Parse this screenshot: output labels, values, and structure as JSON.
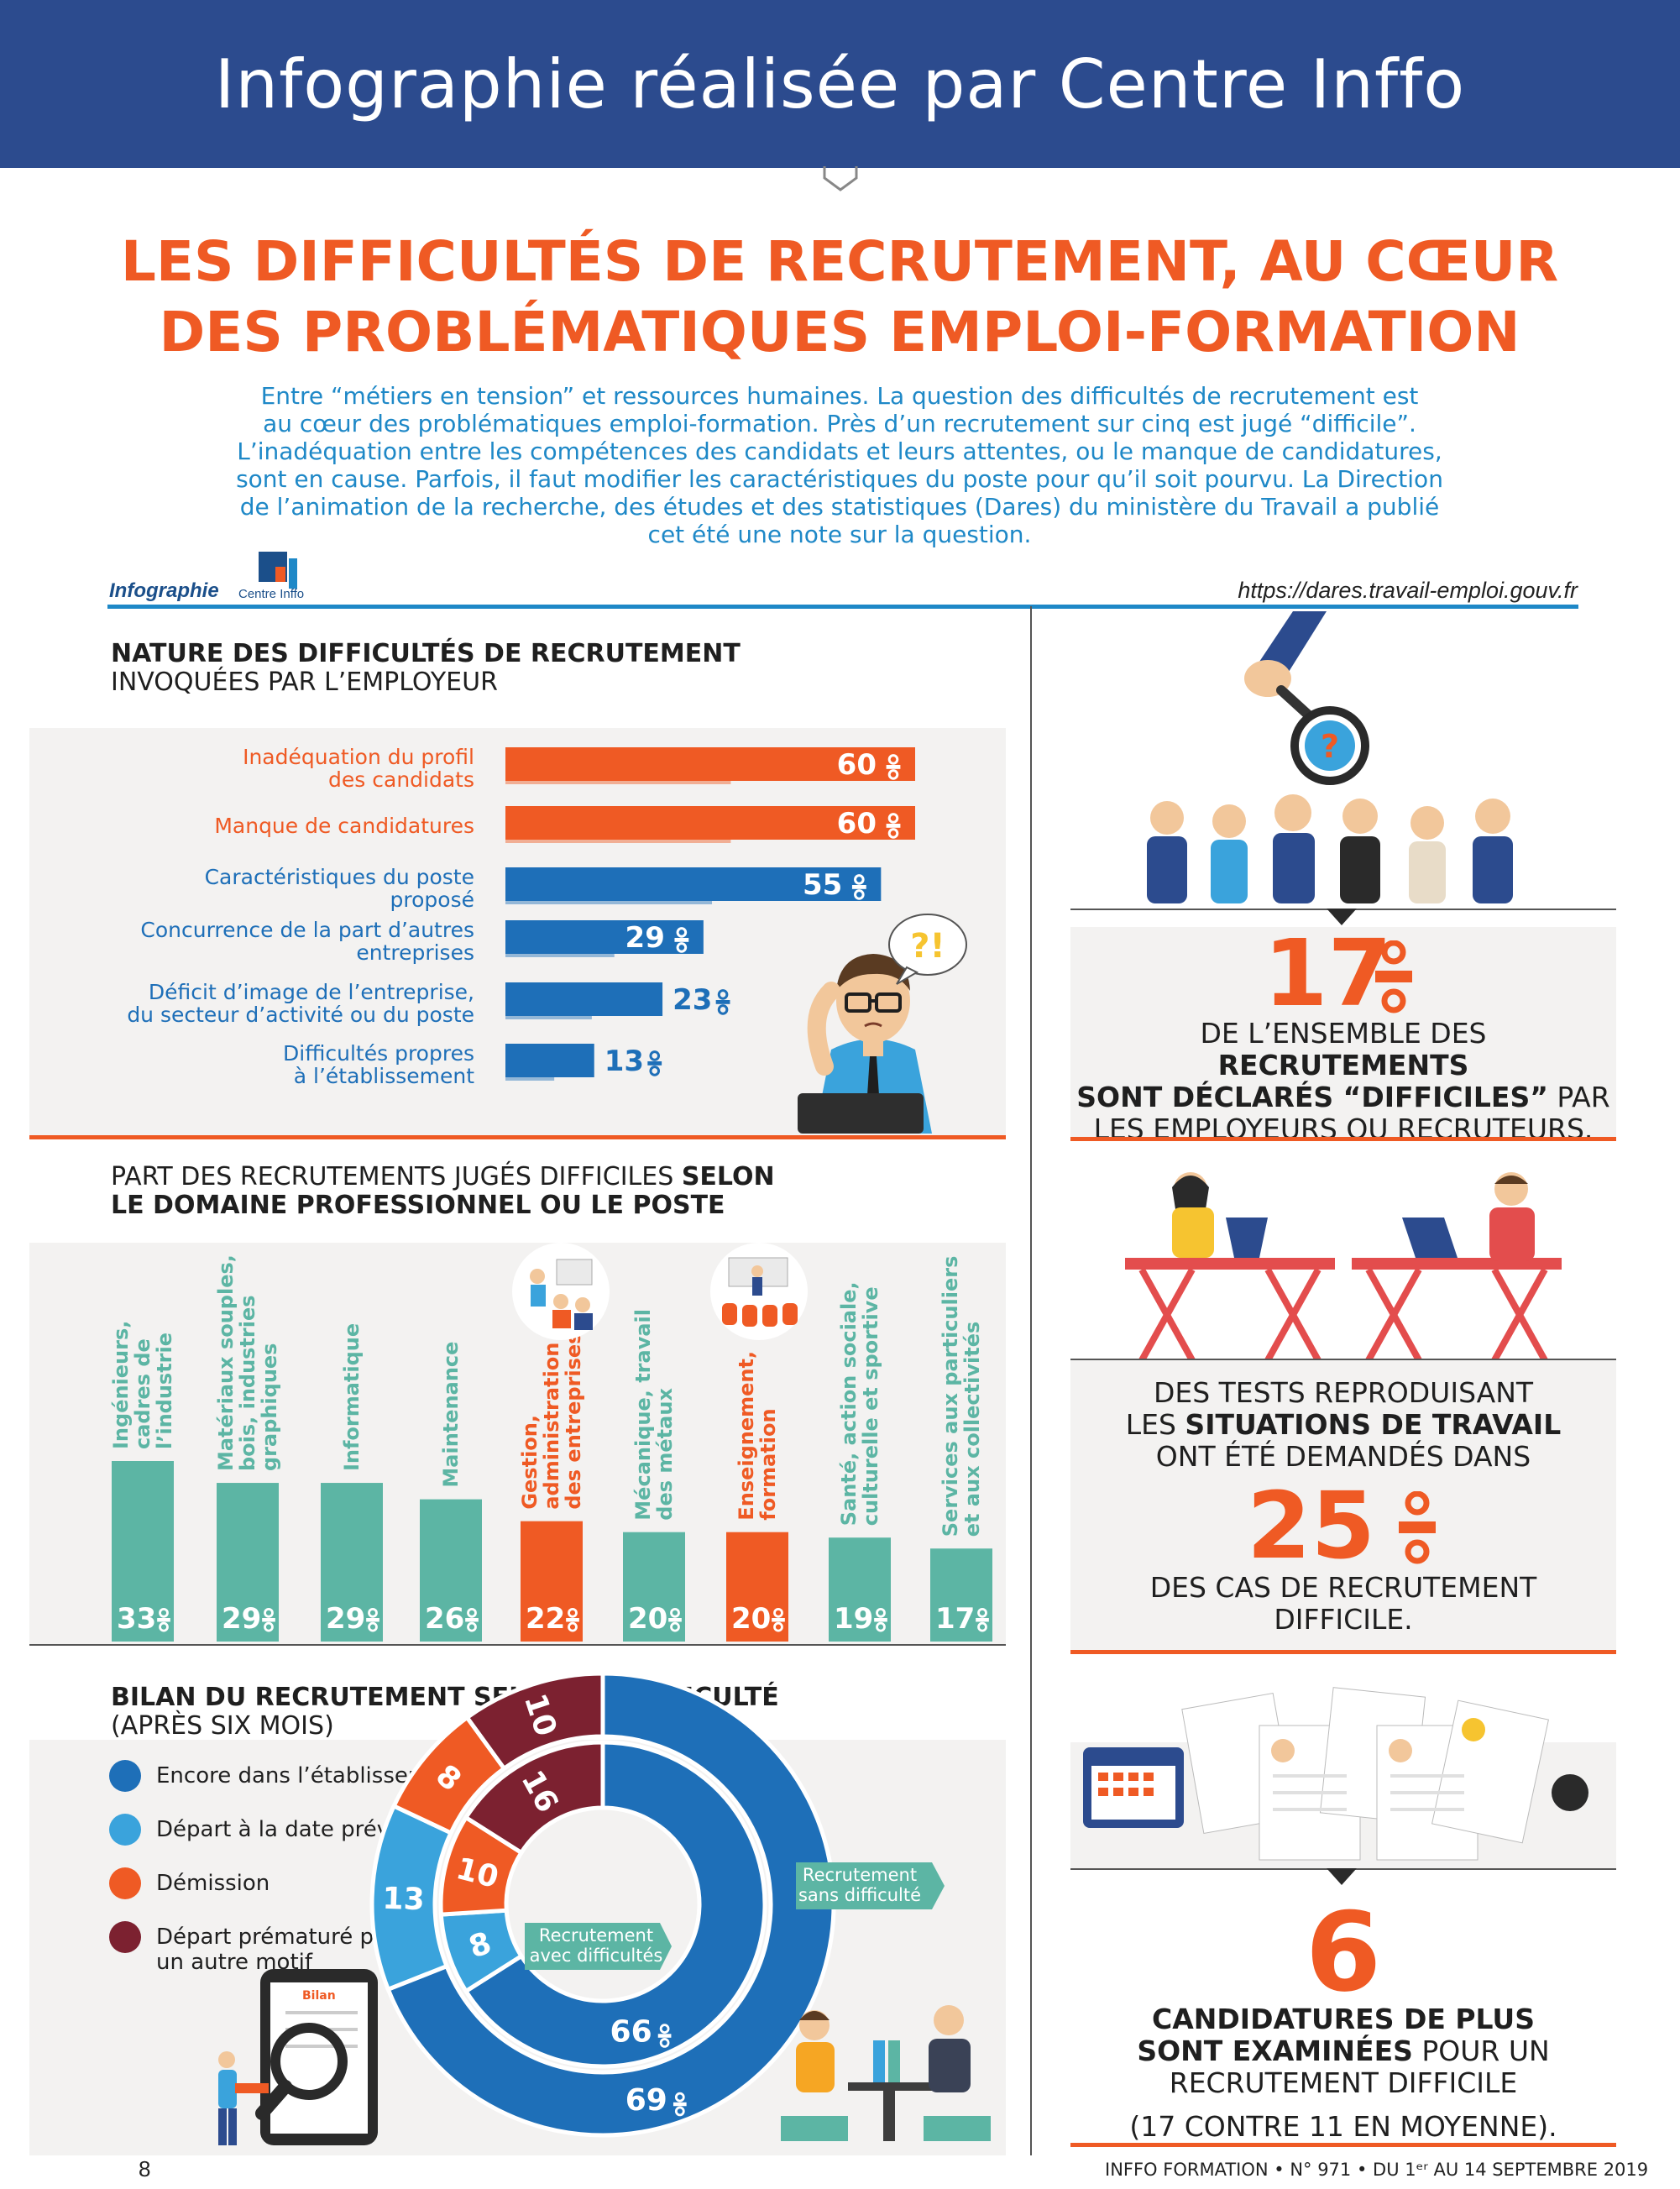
{
  "banner": {
    "text": "Infographie réalisée par Centre Inffo"
  },
  "title": {
    "line1": "LES DIFFICULTÉS DE RECRUTEMENT, AU CŒUR",
    "line2": "DES PROBLÉMATIQUES EMPLOI-FORMATION"
  },
  "intro": {
    "lines": [
      "Entre “métiers en tension” et ressources humaines. La question des difficultés de recrutement est",
      "au cœur des problématiques emploi-formation. Près d’un recrutement sur cinq est jugé “difficile”.",
      "L’inadéquation entre les compétences des candidats et leurs attentes, ou le manque de candidatures,",
      "sont en cause. Parfois, il faut modifier les caractéristiques du poste pour qu’il soit pourvu. La Direction",
      "de l’animation de la recherche, des études et des statistiques (Dares) du ministère du Travail a publié",
      "cet été une note sur la question."
    ]
  },
  "credit": {
    "label": "Infographie",
    "logo_text": "Centre Inffo",
    "url": "https://dares.travail-emploi.gouv.fr"
  },
  "colors": {
    "orange": "#ef5a24",
    "blue": "#1e6fb8",
    "teal": "#5cb5a4",
    "navy": "#2c4b8e",
    "light_blue": "#3aa3dc",
    "dark_red": "#7c2130"
  },
  "section1": {
    "heading_bold": "NATURE DES DIFFICULTÉS DE RECRUTEMENT",
    "heading_rest": "INVOQUÉES PAR L’EMPLOYEUR"
  },
  "section2": {
    "heading_line1_normal": "PART DES RECRUTEMENTS JUGÉS DIFFICILES ",
    "heading_line1_bold": "SELON",
    "heading_line2_bold": "LE DOMAINE PROFESSIONNEL OU LE POSTE"
  },
  "section3": {
    "heading_bold": "BILAN DU RECRUTEMENT SELON LA DIFFICULTÉ",
    "heading_rest": "(APRÈS SIX MOIS)"
  },
  "chart_data": [
    {
      "type": "bar",
      "orientation": "horizontal",
      "categories": [
        [
          "Inadéquation du profil",
          "des candidats"
        ],
        [
          "Manque de candidatures"
        ],
        [
          "Caractéristiques du poste",
          "proposé"
        ],
        [
          "Concurrence de la part d’autres",
          "entreprises"
        ],
        [
          "Déficit d’image de l’entreprise,",
          "du secteur d’activité ou du poste"
        ],
        [
          "Difficultés propres",
          "à l’établissement"
        ]
      ],
      "values": [
        60,
        60,
        55,
        29,
        23,
        13
      ],
      "unit": "%",
      "bar_colors": [
        "#ef5a24",
        "#ef5a24",
        "#1e6fb8",
        "#1e6fb8",
        "#1e6fb8",
        "#1e6fb8"
      ],
      "xlim": [
        0,
        60
      ]
    },
    {
      "type": "bar",
      "orientation": "vertical",
      "categories": [
        [
          "Ingénieurs,",
          "cadres de",
          "l’industrie"
        ],
        [
          "Matériaux souples,",
          "bois, industries",
          "graphiques"
        ],
        [
          "Informatique"
        ],
        [
          "Maintenance"
        ],
        [
          "Gestion,",
          "administration",
          "des entreprises"
        ],
        [
          "Mécanique, travail",
          "des métaux"
        ],
        [
          "Enseignement,",
          "formation"
        ],
        [
          "Santé, action sociale,",
          "culturelle et sportive"
        ],
        [
          "Services aux particuliers",
          "et aux collectivités"
        ]
      ],
      "values": [
        33,
        29,
        29,
        26,
        22,
        20,
        20,
        19,
        17
      ],
      "unit": "%",
      "bar_colors": [
        "#5cb5a4",
        "#5cb5a4",
        "#5cb5a4",
        "#5cb5a4",
        "#ef5a24",
        "#5cb5a4",
        "#ef5a24",
        "#5cb5a4",
        "#5cb5a4"
      ],
      "ylim": [
        0,
        33
      ]
    },
    {
      "type": "pie",
      "legend": [
        {
          "label": "Encore dans l’établissement",
          "color": "#1e6fb8"
        },
        {
          "label": "Départ à la date prévue",
          "color": "#3aa3dc"
        },
        {
          "label": "Démission",
          "color": "#ef5a24"
        },
        {
          "label": "Départ prématuré pour un autre motif",
          "color": "#7c2130"
        }
      ],
      "rings": [
        {
          "name": "Recrutement sans difficulté",
          "position": "outer",
          "values": [
            69,
            13,
            8,
            10
          ]
        },
        {
          "name": "Recrutement avec difficultés",
          "position": "inner",
          "values": [
            66,
            8,
            10,
            16
          ]
        }
      ],
      "unit": "%"
    }
  ],
  "stats": [
    {
      "value": "17",
      "unit": "%",
      "text_parts": [
        [
          "DE L’ENSEMBLE DES ",
          "RECRUTEMENTS"
        ],
        [
          "",
          "SONT DÉCLARÉS “DIFFICILES”",
          " PAR"
        ],
        [
          "LES EMPLOYEURS OU RECRUTEURS."
        ]
      ]
    },
    {
      "value": "25",
      "unit": "%",
      "pre": [
        "DES TESTS REPRODUISANT",
        "LES ",
        "SITUATIONS DE TRAVAIL",
        "ONT ÉTÉ DEMANDÉS DANS"
      ],
      "post": [
        "DES CAS DE RECRUTEMENT",
        "DIFFICILE."
      ]
    },
    {
      "value": "6",
      "lines": [
        "CANDIDATURES DE PLUS",
        "SONT EXAMINÉES",
        " POUR UN",
        "RECRUTEMENT DIFFICILE",
        "(17 CONTRE 11 EN MOYENNE)."
      ]
    }
  ],
  "illustration_labels": {
    "magnifier": "?",
    "exclaim": "?!",
    "tablet": "Bilan"
  },
  "footer": {
    "page": "8",
    "publication": "INFFO FORMATION • N° 971 • DU 1ᵉʳ AU 14 SEPTEMBRE 2019"
  }
}
